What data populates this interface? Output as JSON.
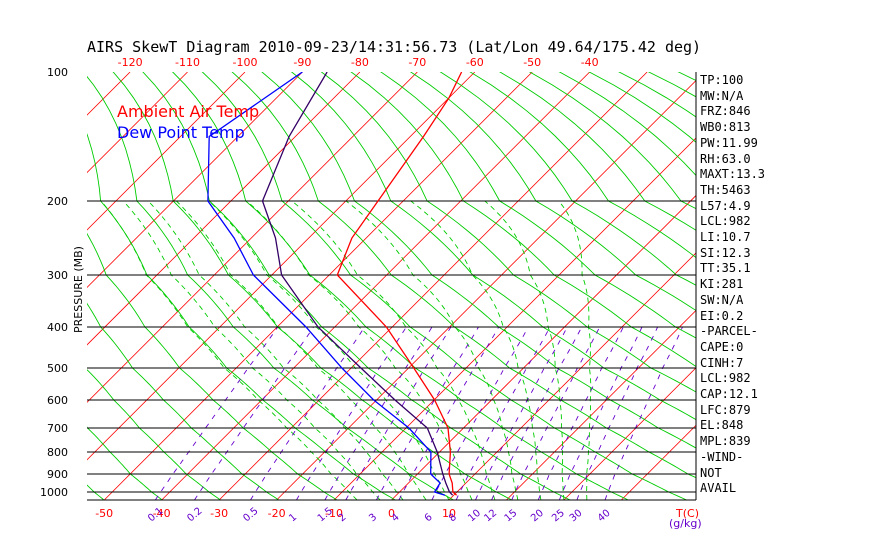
{
  "chart_data": {
    "type": "line",
    "title": "AIRS SkewT Diagram 2010-09-23/14:31:56.73 (Lat/Lon 49.64/175.42 deg)",
    "ylabel": "PRESSURE (MB)",
    "xlabel": "T(C)",
    "mixing_ratio_label": "(g/kg)",
    "ylim": [
      1050,
      100
    ],
    "xlim_at_1050mb": [
      -53,
      53
    ],
    "pressure_ticks": [
      100,
      200,
      300,
      400,
      500,
      600,
      700,
      800,
      900,
      1000
    ],
    "pressure_lines": [
      200,
      300,
      400,
      500,
      600,
      700,
      800,
      900,
      1000,
      1050
    ],
    "bottom_temp_ticks": [
      -50,
      -40,
      -30,
      -20,
      -10,
      0,
      10
    ],
    "top_temp_ticks": [
      -120,
      -110,
      -100,
      -90,
      -80,
      -70,
      -60,
      -50,
      -40
    ],
    "isotherm_range": [
      -150,
      40
    ],
    "isotherm_step": 10,
    "dry_adiabats_theta_K": [
      190,
      200,
      210,
      220,
      230,
      240,
      250,
      260,
      270,
      280,
      290,
      300,
      310,
      320,
      330,
      340,
      350,
      360,
      370,
      380,
      390,
      400,
      410,
      420,
      430,
      440,
      450,
      460,
      470,
      480,
      490,
      500
    ],
    "moist_adiabats_start_C": [
      -6,
      -2,
      2,
      6,
      10,
      14,
      18,
      22,
      26,
      30,
      34
    ],
    "mixing_ratio_lines": [
      "0.1",
      "0.2",
      "0.5",
      "1",
      "1.5",
      "2",
      "3",
      "4",
      "6",
      "8",
      "10",
      "12",
      "15",
      "20",
      "25",
      "30",
      "40"
    ],
    "legend": [
      {
        "label": "Ambient Air Temp",
        "color": "#ff0000"
      },
      {
        "label": "Dew Point Temp",
        "color": "#0000ff"
      }
    ],
    "series": [
      {
        "name": "Ambient Air Temp",
        "color": "#ff0000",
        "points": [
          {
            "p": 100,
            "t": -62.3
          },
          {
            "p": 120,
            "t": -60.0
          },
          {
            "p": 150,
            "t": -57.7
          },
          {
            "p": 200,
            "t": -54.4
          },
          {
            "p": 250,
            "t": -52.5
          },
          {
            "p": 300,
            "t": -48.6
          },
          {
            "p": 400,
            "t": -31.0
          },
          {
            "p": 500,
            "t": -19.1
          },
          {
            "p": 600,
            "t": -9.9
          },
          {
            "p": 700,
            "t": -2.7
          },
          {
            "p": 800,
            "t": 1.9
          },
          {
            "p": 900,
            "t": 5.5
          },
          {
            "p": 950,
            "t": 7.6
          },
          {
            "p": 1000,
            "t": 9.3
          },
          {
            "p": 1020,
            "t": 10.5
          }
        ]
      },
      {
        "name": "Dew Point Temp",
        "color": "#0000ff",
        "points": [
          {
            "p": 100,
            "t": -90.0
          },
          {
            "p": 150,
            "t": -95.0
          },
          {
            "p": 200,
            "t": -84.0
          },
          {
            "p": 250,
            "t": -73.0
          },
          {
            "p": 300,
            "t": -63.2
          },
          {
            "p": 400,
            "t": -45.0
          },
          {
            "p": 500,
            "t": -31.6
          },
          {
            "p": 600,
            "t": -20.5
          },
          {
            "p": 700,
            "t": -9.5
          },
          {
            "p": 800,
            "t": -1.5
          },
          {
            "p": 900,
            "t": 2.3
          },
          {
            "p": 950,
            "t": 5.5
          },
          {
            "p": 1000,
            "t": 6.1
          },
          {
            "p": 1020,
            "t": 8.5
          }
        ]
      },
      {
        "name": "Parcel",
        "color": "#330066",
        "points": [
          {
            "p": 100,
            "t": -85.7
          },
          {
            "p": 150,
            "t": -81.1
          },
          {
            "p": 200,
            "t": -74.5
          },
          {
            "p": 250,
            "t": -65.8
          },
          {
            "p": 300,
            "t": -58.3
          },
          {
            "p": 400,
            "t": -42.9
          },
          {
            "p": 500,
            "t": -28.3
          },
          {
            "p": 600,
            "t": -16.8
          },
          {
            "p": 700,
            "t": -6.3
          },
          {
            "p": 800,
            "t": -0.4
          },
          {
            "p": 900,
            "t": 4.4
          },
          {
            "p": 950,
            "t": 6.5
          },
          {
            "p": 1000,
            "t": 8.7
          },
          {
            "p": 1020,
            "t": 9.8
          }
        ]
      }
    ]
  },
  "indices": [
    "TP:100",
    "MW:N/A",
    "FRZ:846",
    "WB0:813",
    "PW:11.99",
    "RH:63.0",
    "MAXT:13.3",
    "TH:5463",
    "L57:4.9",
    "LCL:982",
    "LI:10.7",
    "SI:12.3",
    "TT:35.1",
    "KI:281",
    "SW:N/A",
    "EI:0.2",
    "-PARCEL-",
    "CAPE:0",
    "CINH:7",
    "LCL:982",
    "CAP:12.1",
    "LFC:879",
    "EL:848",
    "MPL:839",
    "-WIND-",
    "NOT",
    "AVAIL"
  ],
  "colors": {
    "isotherm": "#ff0000",
    "dry_adiabat": "#00cc00",
    "moist_adiabat": "#00cc00",
    "mixing_ratio": "#6600cc",
    "isobar": "#000000",
    "temperature": "#ff0000",
    "dewpoint": "#0000ff",
    "parcel": "#330066"
  }
}
